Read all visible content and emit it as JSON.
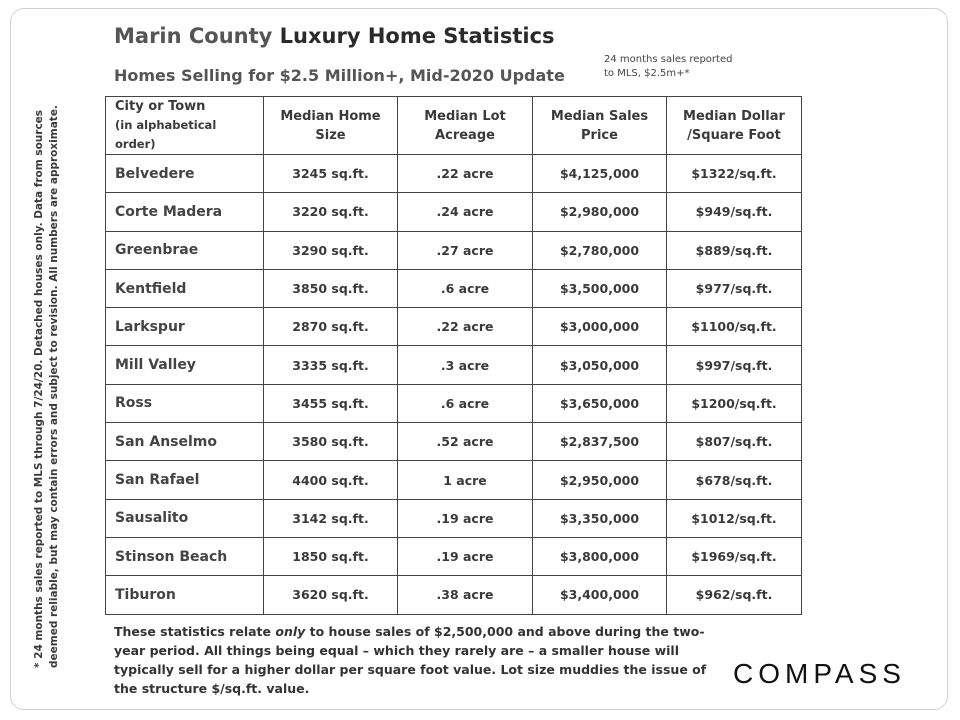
{
  "header": {
    "title_part1": "Marin County",
    "title_part2": "Luxury Home Statistics",
    "subtitle": "Homes Selling for $2.5 Million+, Mid-2020 Update",
    "note_line1": "24 months sales reported",
    "note_line2": "to MLS, $2.5m+*"
  },
  "table": {
    "headers": {
      "city": "City or Town",
      "city_sub": "(in alphabetical order)",
      "size": "Median Home Size",
      "lot": "Median Lot Acreage",
      "price": "Median Sales Price",
      "dollar_sqft": "Median Dollar /Square Foot"
    },
    "rows": [
      {
        "city": "Belvedere",
        "size": "3245 sq.ft.",
        "lot": ".22 acre",
        "price": "$4,125,000",
        "dollar_sqft": "$1322/sq.ft."
      },
      {
        "city": "Corte Madera",
        "size": "3220 sq.ft.",
        "lot": ".24 acre",
        "price": "$2,980,000",
        "dollar_sqft": "$949/sq.ft."
      },
      {
        "city": "Greenbrae",
        "size": "3290 sq.ft.",
        "lot": ".27 acre",
        "price": "$2,780,000",
        "dollar_sqft": "$889/sq.ft."
      },
      {
        "city": "Kentfield",
        "size": "3850 sq.ft.",
        "lot": ".6 acre",
        "price": "$3,500,000",
        "dollar_sqft": "$977/sq.ft."
      },
      {
        "city": "Larkspur",
        "size": "2870 sq.ft.",
        "lot": ".22 acre",
        "price": "$3,000,000",
        "dollar_sqft": "$1100/sq.ft."
      },
      {
        "city": "Mill Valley",
        "size": "3335 sq.ft.",
        "lot": ".3 acre",
        "price": "$3,050,000",
        "dollar_sqft": "$997/sq.ft."
      },
      {
        "city": "Ross",
        "size": "3455 sq.ft.",
        "lot": ".6 acre",
        "price": "$3,650,000",
        "dollar_sqft": "$1200/sq.ft."
      },
      {
        "city": "San Anselmo",
        "size": "3580 sq.ft.",
        "lot": ".52 acre",
        "price": "$2,837,500",
        "dollar_sqft": "$807/sq.ft."
      },
      {
        "city": "San Rafael",
        "size": "4400 sq.ft.",
        "lot": "1 acre",
        "price": "$2,950,000",
        "dollar_sqft": "$678/sq.ft."
      },
      {
        "city": "Sausalito",
        "size": "3142 sq.ft.",
        "lot": ".19 acre",
        "price": "$3,350,000",
        "dollar_sqft": "$1012/sq.ft."
      },
      {
        "city": "Stinson Beach",
        "size": "1850 sq.ft.",
        "lot": ".19 acre",
        "price": "$3,800,000",
        "dollar_sqft": "$1969/sq.ft."
      },
      {
        "city": "Tiburon",
        "size": "3620 sq.ft.",
        "lot": ".38 acre",
        "price": "$3,400,000",
        "dollar_sqft": "$962/sq.ft."
      }
    ]
  },
  "side_note": {
    "line1": "* 24 months sales reported to MLS through 7/24/20. Detached houses only. Data from sources",
    "line2": "deemed reliable, but may contain errors and subject to revision. All numbers are approximate."
  },
  "footer": {
    "part1": "These statistics relate ",
    "emphasis": "only",
    "part2": " to house sales of $2,500,000 and above during the two-year period. All things being equal – which they rarely are – a smaller house will typically sell for a higher dollar per square foot value. Lot size muddies the issue of the structure $/sq.ft. value."
  },
  "logo": {
    "text": "COMPASS"
  }
}
